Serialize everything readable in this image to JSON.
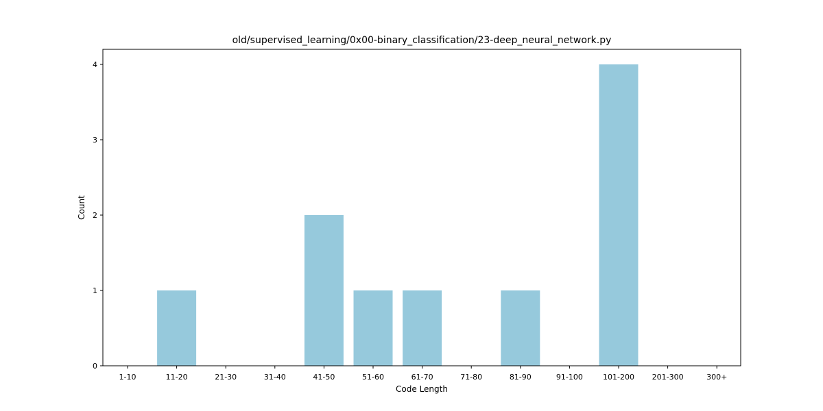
{
  "chart_data": {
    "type": "bar",
    "title": "old/supervised_learning/0x00-binary_classification/23-deep_neural_network.py",
    "xlabel": "Code Length",
    "ylabel": "Count",
    "categories": [
      "1-10",
      "11-20",
      "21-30",
      "31-40",
      "41-50",
      "51-60",
      "61-70",
      "71-80",
      "81-90",
      "91-100",
      "101-200",
      "201-300",
      "300+"
    ],
    "values": [
      0,
      1,
      0,
      0,
      2,
      1,
      1,
      0,
      1,
      0,
      4,
      0,
      0
    ],
    "yticks": [
      0,
      1,
      2,
      3,
      4
    ],
    "ylim": [
      0,
      4.2
    ],
    "bar_color": "#96c9dc",
    "grid": false,
    "legend": "none"
  }
}
